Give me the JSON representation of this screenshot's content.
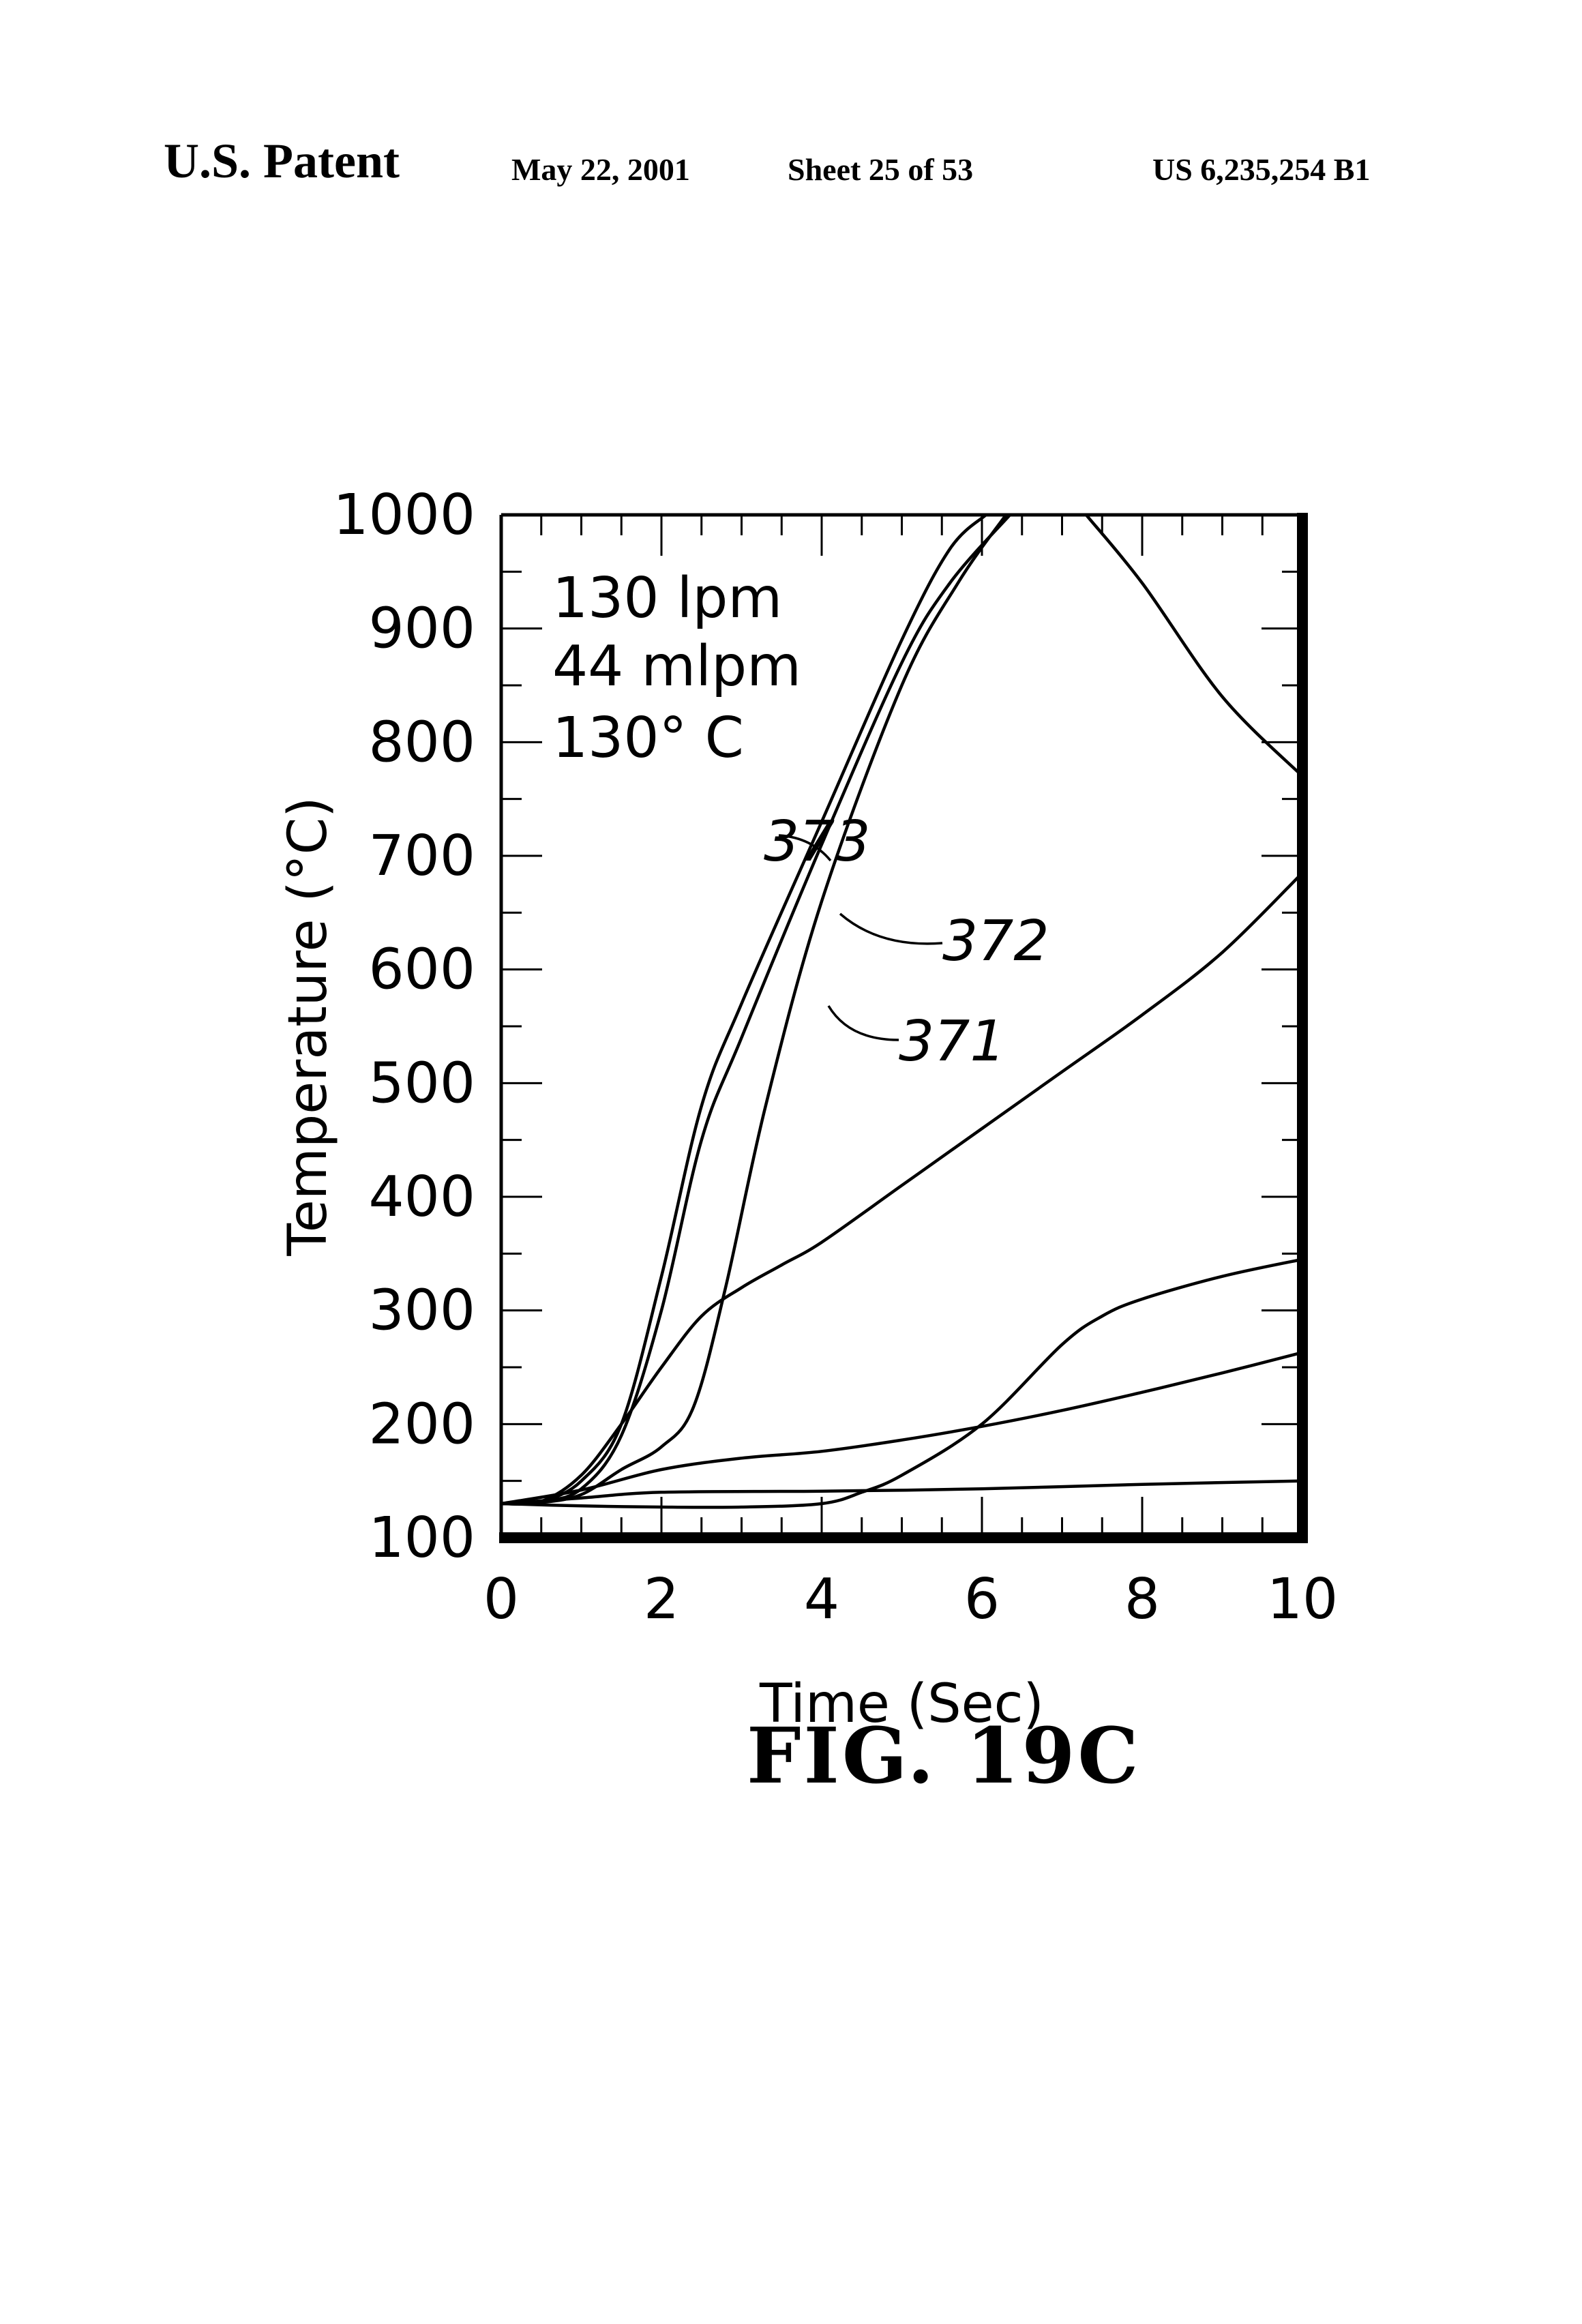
{
  "header": {
    "left": "U.S. Patent",
    "date": "May 22, 2001",
    "sheet": "Sheet 25 of 53",
    "number": "US 6,235,254 B1"
  },
  "figure_label": "FIG. 19C",
  "chart_data": {
    "type": "line",
    "xlabel": "Time (Sec)",
    "ylabel": "Temperature (°C)",
    "xlim": [
      0,
      10
    ],
    "ylim": [
      100,
      1000
    ],
    "x_ticks": [
      "0",
      "2",
      "4",
      "6",
      "8",
      "10"
    ],
    "y_ticks": [
      "100",
      "200",
      "300",
      "400",
      "500",
      "600",
      "700",
      "800",
      "900",
      "1000"
    ],
    "grid": false,
    "annotations": [
      {
        "text": "130 lpm"
      },
      {
        "text": "44 mlpm"
      },
      {
        "text": "130° C"
      }
    ],
    "series": [
      {
        "name": "373",
        "x": [
          0,
          0.5,
          1,
          1.5,
          2,
          2.5,
          3,
          4,
          5,
          5.6,
          6.05
        ],
        "y": [
          130,
          132,
          150,
          200,
          330,
          480,
          570,
          730,
          890,
          970,
          1000
        ]
      },
      {
        "name": "372",
        "x": [
          0,
          0.5,
          1,
          1.5,
          2,
          2.5,
          3,
          4,
          5,
          5.6,
          6.35
        ],
        "y": [
          130,
          132,
          143,
          190,
          300,
          450,
          540,
          710,
          870,
          940,
          1000
        ]
      },
      {
        "name": "371",
        "x": [
          0,
          0.5,
          1,
          1.5,
          2,
          2.4,
          2.8,
          3.3,
          4,
          5,
          5.7,
          6.3
        ],
        "y": [
          130,
          131,
          138,
          160,
          180,
          215,
          320,
          480,
          660,
          850,
          940,
          1000
        ]
      },
      {
        "x": [
          0,
          0.5,
          1,
          1.5,
          2,
          2.5,
          3,
          3.5,
          4,
          5,
          6,
          7,
          8,
          9,
          10
        ],
        "y": [
          130,
          132,
          155,
          200,
          250,
          295,
          320,
          340,
          360,
          410,
          460,
          510,
          560,
          615,
          685
        ]
      },
      {
        "x": [
          7.3,
          8,
          9,
          10
        ],
        "y": [
          1000,
          940,
          840,
          770
        ]
      },
      {
        "x": [
          0,
          1,
          2,
          3,
          4,
          4.5,
          5,
          6,
          7,
          7.5,
          8,
          9,
          10
        ],
        "y": [
          130,
          128,
          127,
          127,
          130,
          140,
          155,
          200,
          270,
          295,
          310,
          330,
          345
        ]
      },
      {
        "x": [
          0,
          1,
          2,
          3,
          4,
          5,
          6,
          7,
          8,
          9,
          10
        ],
        "y": [
          130,
          142,
          160,
          170,
          176,
          186,
          198,
          212,
          228,
          245,
          263
        ]
      },
      {
        "x": [
          0,
          1,
          2,
          4,
          6,
          8,
          10
        ],
        "y": [
          130,
          135,
          140,
          141,
          143,
          147,
          150
        ]
      }
    ]
  }
}
